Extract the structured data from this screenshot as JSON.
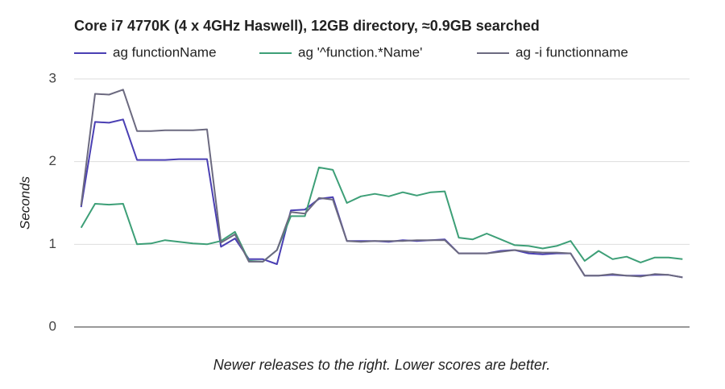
{
  "chart_data": {
    "type": "line",
    "title": "Core i7 4770K (4 x 4GHz Haswell), 12GB directory, ≈0.9GB searched",
    "y_label": "Seconds",
    "x_label": "Newer releases to the right. Lower scores are better.",
    "categories": [
      null,
      null,
      null,
      null,
      null,
      null,
      null,
      null,
      null,
      null,
      null,
      null,
      null,
      null,
      null,
      null,
      null,
      null,
      null,
      null,
      null,
      null,
      null,
      null,
      null,
      null,
      null,
      null,
      null,
      null,
      null,
      null,
      null,
      null,
      null,
      null,
      null,
      null,
      null,
      null,
      null,
      null,
      null,
      null
    ],
    "series": [
      {
        "name": "ag functionName",
        "color": "#4a3fb3",
        "values": [
          1.45,
          2.48,
          2.47,
          2.51,
          2.02,
          2.02,
          2.02,
          2.03,
          2.03,
          2.03,
          0.97,
          1.07,
          0.82,
          0.82,
          0.76,
          1.41,
          1.42,
          1.55,
          1.57,
          1.04,
          1.04,
          1.04,
          1.03,
          1.05,
          1.04,
          1.05,
          1.06,
          0.89,
          0.89,
          0.89,
          0.92,
          0.93,
          0.89,
          0.88,
          0.89,
          0.89,
          0.62,
          0.62,
          0.63,
          0.62,
          0.62,
          0.63,
          0.63,
          0.6
        ]
      },
      {
        "name": "ag '^function.*Name'",
        "color": "#3d9f77",
        "values": [
          1.2,
          1.49,
          1.48,
          1.49,
          1.0,
          1.01,
          1.05,
          1.03,
          1.01,
          1.0,
          1.04,
          1.15,
          0.8,
          0.79,
          0.93,
          1.34,
          1.34,
          1.93,
          1.9,
          1.5,
          1.58,
          1.61,
          1.58,
          1.63,
          1.59,
          1.63,
          1.64,
          1.08,
          1.06,
          1.13,
          1.06,
          0.99,
          0.98,
          0.95,
          0.98,
          1.04,
          0.8,
          0.92,
          0.82,
          0.85,
          0.78,
          0.84,
          0.84,
          0.82
        ]
      },
      {
        "name": "ag -i functionname",
        "color": "#6c6a80",
        "values": [
          1.47,
          2.82,
          2.81,
          2.87,
          2.37,
          2.37,
          2.38,
          2.38,
          2.38,
          2.39,
          1.02,
          1.12,
          0.79,
          0.79,
          0.93,
          1.39,
          1.37,
          1.56,
          1.54,
          1.04,
          1.03,
          1.04,
          1.04,
          1.04,
          1.05,
          1.05,
          1.05,
          0.89,
          0.89,
          0.89,
          0.91,
          0.93,
          0.91,
          0.9,
          0.9,
          0.89,
          0.62,
          0.62,
          0.64,
          0.62,
          0.61,
          0.64,
          0.63,
          0.6
        ]
      }
    ],
    "ylim": [
      0,
      3
    ],
    "yticks": [
      0,
      1,
      2,
      3
    ],
    "grid": true,
    "legend": "top"
  }
}
